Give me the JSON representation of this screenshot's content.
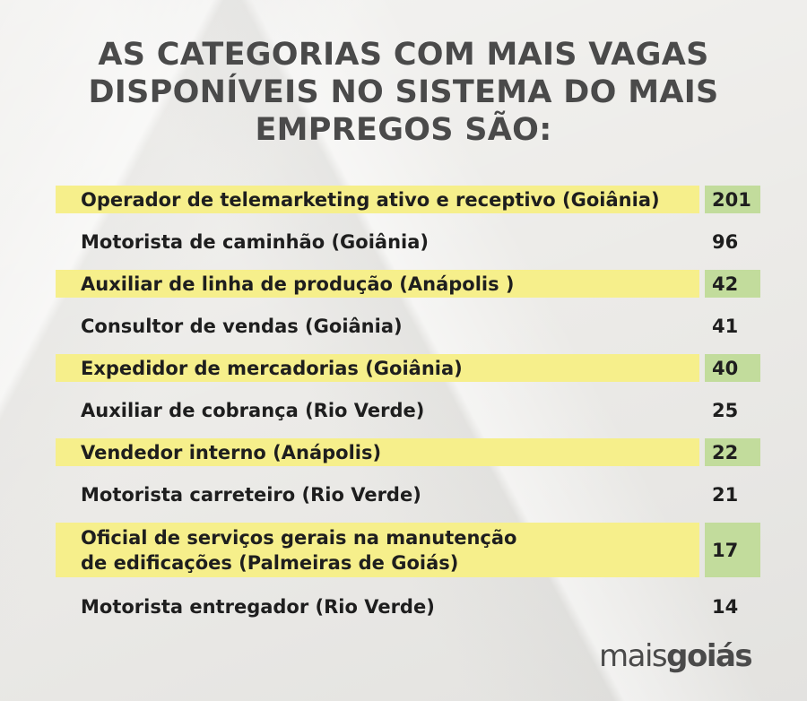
{
  "header": {
    "title": "AS CATEGORIAS COM MAIS VAGAS DISPONÍVEIS NO SISTEMA DO MAIS EMPREGOS SÃO:"
  },
  "chart_data": {
    "type": "table",
    "title": "AS CATEGORIAS COM MAIS VAGAS DISPONÍVEIS NO SISTEMA DO MAIS EMPREGOS SÃO:",
    "rows": [
      {
        "label": "Operador de telemarketing ativo e receptivo (Goiânia)",
        "value": "201",
        "highlight": true
      },
      {
        "label": "Motorista de caminhão (Goiânia)",
        "value": "96",
        "highlight": false
      },
      {
        "label": "Auxiliar de linha de produção (Anápolis )",
        "value": "42",
        "highlight": true
      },
      {
        "label": "Consultor de vendas (Goiânia)",
        "value": "41",
        "highlight": false
      },
      {
        "label": "Expedidor de mercadorias (Goiânia)",
        "value": "40",
        "highlight": true
      },
      {
        "label": "Auxiliar de cobrança (Rio Verde)",
        "value": "25",
        "highlight": false
      },
      {
        "label": "Vendedor interno (Anápolis)",
        "value": "22",
        "highlight": true
      },
      {
        "label": "Motorista carreteiro (Rio Verde)",
        "value": "21",
        "highlight": false
      },
      {
        "label": "Oficial de serviços gerais na manutenção de edificações (Palmeiras de Goiás)",
        "label_line1": "Oficial de serviços gerais na manutenção",
        "label_line2": "de edificações (Palmeiras de Goiás)",
        "value": "17",
        "highlight": true
      },
      {
        "label": "Motorista entregador (Rio Verde)",
        "value": "14",
        "highlight": false
      }
    ],
    "colors": {
      "highlight_label": "#f6ef8b",
      "highlight_value": "#c2dc9c",
      "title": "#4a4a4a"
    }
  },
  "logo": {
    "part1": "mais",
    "part2": "goiás"
  }
}
